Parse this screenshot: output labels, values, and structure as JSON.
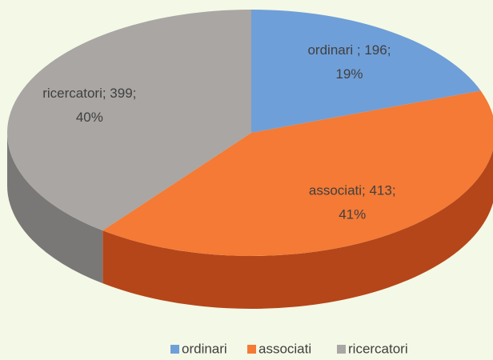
{
  "chart_data": {
    "type": "pie",
    "categories": [
      "ordinari",
      "associati",
      "ricercatori"
    ],
    "values": [
      196,
      413,
      399
    ],
    "value_labels": [
      "ordinari ; 196;",
      "associati; 413;",
      "ricercatori; 399;"
    ],
    "percent_labels": [
      "19%",
      "41%",
      "40%"
    ],
    "colors": [
      "#6f9fd8",
      "#f47a35",
      "#a9a6a3"
    ],
    "side_colors": [
      "#3f6ea8",
      "#b4461a",
      "#7a7876"
    ],
    "legend": "bottom"
  }
}
